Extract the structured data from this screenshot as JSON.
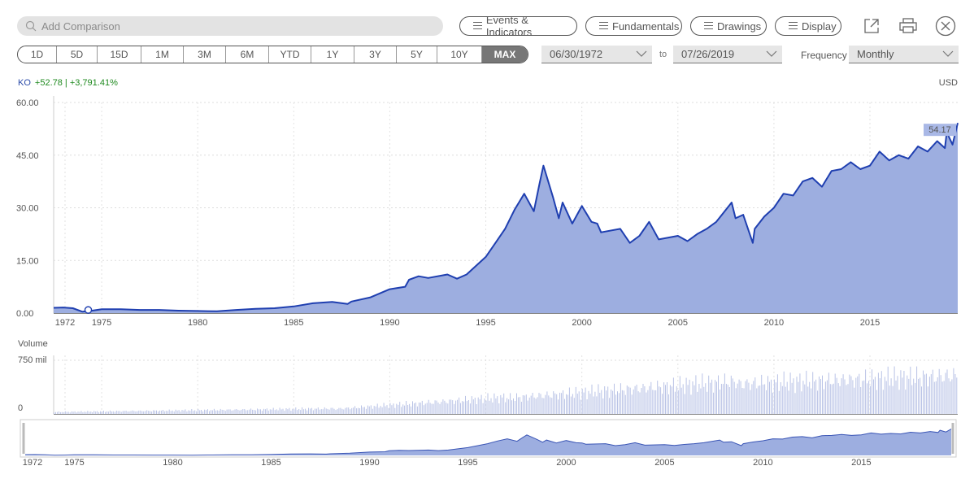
{
  "toolbar": {
    "search_placeholder": "Add Comparison",
    "events_label": "Events & Indicators",
    "fundamentals_label": "Fundamentals",
    "drawings_label": "Drawings",
    "display_label": "Display",
    "popout_icon": "popout-icon",
    "print_icon": "print-icon",
    "close_icon": "close-icon"
  },
  "ranges": [
    "1D",
    "5D",
    "15D",
    "1M",
    "3M",
    "6M",
    "YTD",
    "1Y",
    "3Y",
    "5Y",
    "10Y",
    "MAX"
  ],
  "active_range": "MAX",
  "date_from": "06/30/1972",
  "date_to_label": "to",
  "date_to": "07/26/2019",
  "frequency_label": "Frequency",
  "frequency_value": "Monthly",
  "header": {
    "symbol": "KO",
    "change": "+52.78 | +3,791.41%",
    "currency": "USD",
    "last_price": "54.17"
  },
  "colors": {
    "line": "#1f3fb0",
    "fill": "#9daee0",
    "positive": "#1f8a1f",
    "label_bg": "#a9b8e6"
  },
  "chart_data": {
    "type": "area",
    "x_unit": "year",
    "xlim": [
      1972.5,
      2019.57
    ],
    "ylim": [
      0,
      60
    ],
    "y_ticks": [
      "60.00",
      "45.00",
      "30.00",
      "15.00",
      "0.00"
    ],
    "x_ticks": [
      "1972",
      "1975",
      "1980",
      "1985",
      "1990",
      "1995",
      "2000",
      "2005",
      "2010",
      "2015"
    ],
    "series": [
      {
        "name": "KO",
        "x": [
          1972.5,
          1973,
          1973.5,
          1974,
          1974.5,
          1975,
          1976,
          1977,
          1978,
          1979,
          1980,
          1981,
          1982,
          1983,
          1984,
          1985,
          1986,
          1987,
          1987.8,
          1988,
          1989,
          1990,
          1990.8,
          1991,
          1991.5,
          1992,
          1993,
          1993.5,
          1994,
          1995,
          1995.5,
          1996,
          1996.5,
          1997,
          1997.5,
          1997.8,
          1998,
          1998.5,
          1998.8,
          1999,
          1999.5,
          2000,
          2000.5,
          2000.8,
          2001,
          2002,
          2002.5,
          2003,
          2003.5,
          2004,
          2005,
          2005.5,
          2006,
          2006.5,
          2007,
          2007.8,
          2008,
          2008.4,
          2008.9,
          2009,
          2009.5,
          2010,
          2010.5,
          2011,
          2011.5,
          2012,
          2012.5,
          2013,
          2013.5,
          2014,
          2014.5,
          2015,
          2015.5,
          2016,
          2016.5,
          2017,
          2017.5,
          2018,
          2018.5,
          2018.9,
          2019,
          2019.3,
          2019.57
        ],
        "values": [
          1.5,
          1.6,
          1.4,
          0.4,
          0.7,
          1.1,
          1.1,
          0.9,
          0.9,
          0.7,
          0.6,
          0.5,
          0.9,
          1.2,
          1.4,
          1.9,
          2.8,
          3.2,
          2.6,
          3.3,
          4.5,
          6.8,
          7.5,
          9.5,
          10.5,
          10.0,
          11.0,
          9.8,
          11.0,
          16.0,
          20.0,
          24.0,
          29.5,
          34.0,
          29.0,
          37.0,
          42.0,
          33.0,
          27.0,
          31.5,
          25.5,
          30.5,
          26.0,
          25.5,
          23.0,
          24.0,
          20.0,
          22.0,
          26.0,
          21.0,
          22.0,
          20.5,
          22.5,
          24.0,
          26.0,
          31.5,
          27.0,
          28.0,
          20.0,
          24.0,
          27.5,
          30.0,
          34.0,
          33.5,
          37.5,
          38.5,
          36.0,
          40.5,
          41.0,
          43.0,
          41.0,
          42.0,
          46.0,
          43.5,
          45.0,
          44.0,
          47.5,
          46.0,
          49.0,
          47.0,
          51.5,
          48.0,
          54.17
        ]
      }
    ],
    "volume": {
      "label": "Volume",
      "y_ticks": [
        "750 mil",
        "0"
      ],
      "ylim": [
        0,
        900
      ],
      "series_name": "Volume"
    },
    "navigator": {
      "x_ticks": [
        "1972",
        "1975",
        "1980",
        "1985",
        "1990",
        "1995",
        "2000",
        "2005",
        "2010",
        "2015"
      ]
    }
  }
}
